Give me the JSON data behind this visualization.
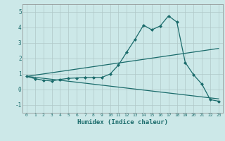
{
  "xlabel": "Humidex (Indice chaleur)",
  "ylabel": "",
  "bg_color": "#cce8e8",
  "grid_color": "#b0c8c8",
  "line_color": "#1a6b6b",
  "xlim": [
    -0.5,
    23.5
  ],
  "ylim": [
    -1.5,
    5.5
  ],
  "xticks": [
    0,
    1,
    2,
    3,
    4,
    5,
    6,
    7,
    8,
    9,
    10,
    11,
    12,
    13,
    14,
    15,
    16,
    17,
    18,
    19,
    20,
    21,
    22,
    23
  ],
  "yticks": [
    -1,
    0,
    1,
    2,
    3,
    4,
    5
  ],
  "line1_x": [
    0,
    1,
    2,
    3,
    4,
    5,
    6,
    7,
    8,
    9,
    10,
    11,
    12,
    13,
    14,
    15,
    16,
    17,
    18,
    19,
    20,
    21,
    22,
    23
  ],
  "line1_y": [
    0.85,
    0.7,
    0.6,
    0.55,
    0.65,
    0.72,
    0.75,
    0.78,
    0.78,
    0.78,
    1.0,
    1.58,
    2.42,
    3.25,
    4.15,
    3.85,
    4.1,
    4.75,
    4.35,
    1.75,
    0.95,
    0.35,
    -0.65,
    -0.75
  ],
  "line2_x": [
    0,
    23
  ],
  "line2_y": [
    0.85,
    2.65
  ],
  "line3_x": [
    0,
    23
  ],
  "line3_y": [
    0.85,
    -0.6
  ],
  "marker_style": "D",
  "marker_size": 2.0,
  "line_width": 0.9,
  "xlabel_fontsize": 6.5,
  "xtick_fontsize": 4.5,
  "ytick_fontsize": 5.5
}
